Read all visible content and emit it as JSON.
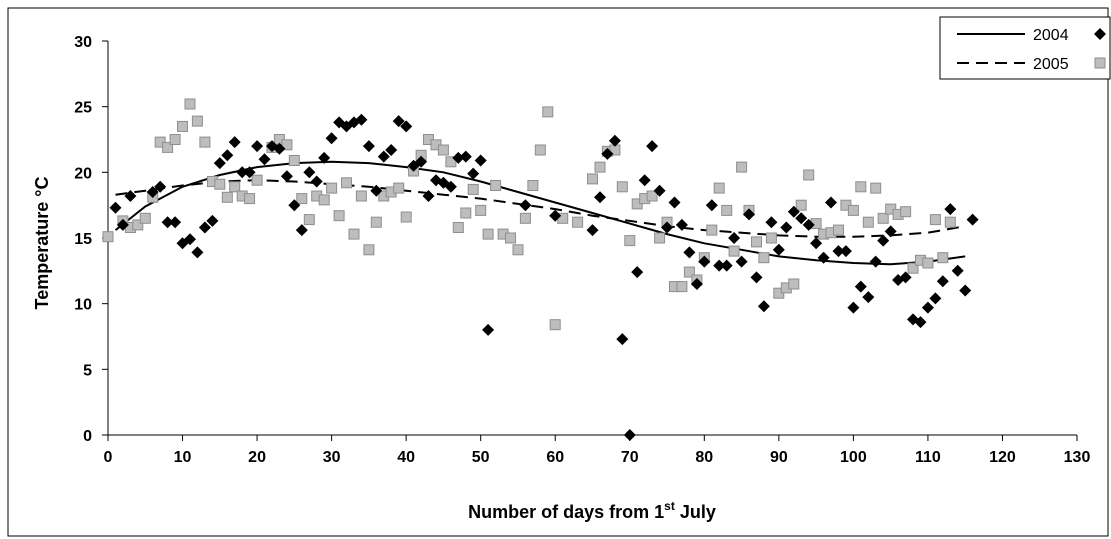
{
  "chart_data": {
    "type": "scatter",
    "xlabel": "Number of days from 1st July",
    "xlabel_parts": {
      "before": "Number of days from 1",
      "sup": "st",
      "after": " July"
    },
    "ylabel": "Temperature °C",
    "xlim": [
      0,
      130
    ],
    "ylim": [
      0,
      30
    ],
    "x_ticks": [
      0,
      10,
      20,
      30,
      40,
      50,
      60,
      70,
      80,
      90,
      100,
      110,
      120,
      130
    ],
    "y_ticks": [
      0,
      5,
      10,
      15,
      20,
      25,
      30
    ],
    "grid": false,
    "legend_position": "top-right",
    "series": [
      {
        "name": "2004",
        "marker": "diamond",
        "color": "#000000",
        "line_style": "solid",
        "points": [
          [
            1,
            17.3
          ],
          [
            2,
            16
          ],
          [
            3,
            18.2
          ],
          [
            6,
            18.5
          ],
          [
            7,
            18.9
          ],
          [
            8,
            16.2
          ],
          [
            9,
            16.2
          ],
          [
            10,
            14.6
          ],
          [
            11,
            14.9
          ],
          [
            12,
            13.9
          ],
          [
            13,
            15.8
          ],
          [
            14,
            16.3
          ],
          [
            15,
            20.7
          ],
          [
            16,
            21.3
          ],
          [
            17,
            22.3
          ],
          [
            18,
            20
          ],
          [
            19,
            20
          ],
          [
            20,
            22
          ],
          [
            21,
            21
          ],
          [
            22,
            22
          ],
          [
            23,
            21.8
          ],
          [
            24,
            19.7
          ],
          [
            25,
            17.5
          ],
          [
            26,
            15.6
          ],
          [
            27,
            20
          ],
          [
            28,
            19.3
          ],
          [
            29,
            21.1
          ],
          [
            30,
            22.6
          ],
          [
            31,
            23.8
          ],
          [
            32,
            23.5
          ],
          [
            33,
            23.8
          ],
          [
            34,
            24
          ],
          [
            35,
            22
          ],
          [
            36,
            18.6
          ],
          [
            37,
            21.2
          ],
          [
            38,
            21.7
          ],
          [
            39,
            23.9
          ],
          [
            40,
            23.5
          ],
          [
            41,
            20.5
          ],
          [
            42,
            20.8
          ],
          [
            43,
            18.2
          ],
          [
            44,
            19.4
          ],
          [
            45,
            19.2
          ],
          [
            46,
            18.9
          ],
          [
            47,
            21.1
          ],
          [
            48,
            21.2
          ],
          [
            49,
            19.9
          ],
          [
            50,
            20.9
          ],
          [
            51,
            8
          ],
          [
            56,
            17.5
          ],
          [
            60,
            16.7
          ],
          [
            65,
            15.6
          ],
          [
            66,
            18.1
          ],
          [
            67,
            21.4
          ],
          [
            68,
            22.4
          ],
          [
            69,
            7.3
          ],
          [
            70,
            0
          ],
          [
            71,
            12.4
          ],
          [
            72,
            19.4
          ],
          [
            73,
            22
          ],
          [
            74,
            18.6
          ],
          [
            75,
            15.8
          ],
          [
            76,
            17.7
          ],
          [
            77,
            16
          ],
          [
            78,
            13.9
          ],
          [
            79,
            11.5
          ],
          [
            80,
            13.2
          ],
          [
            81,
            17.5
          ],
          [
            82,
            12.9
          ],
          [
            83,
            12.9
          ],
          [
            84,
            15
          ],
          [
            85,
            13.2
          ],
          [
            86,
            16.8
          ],
          [
            87,
            12
          ],
          [
            88,
            9.8
          ],
          [
            89,
            16.2
          ],
          [
            90,
            14.1
          ],
          [
            91,
            15.8
          ],
          [
            92,
            17
          ],
          [
            93,
            16.5
          ],
          [
            94,
            16
          ],
          [
            95,
            14.6
          ],
          [
            96,
            13.5
          ],
          [
            97,
            17.7
          ],
          [
            98,
            14
          ],
          [
            99,
            14
          ],
          [
            100,
            9.7
          ],
          [
            101,
            11.3
          ],
          [
            102,
            10.5
          ],
          [
            103,
            13.2
          ],
          [
            104,
            14.8
          ],
          [
            105,
            15.5
          ],
          [
            106,
            11.8
          ],
          [
            107,
            12
          ],
          [
            108,
            8.8
          ],
          [
            109,
            8.6
          ],
          [
            110,
            9.7
          ],
          [
            111,
            10.4
          ],
          [
            112,
            11.7
          ],
          [
            113,
            17.2
          ],
          [
            114,
            12.5
          ],
          [
            115,
            11
          ],
          [
            116,
            16.4
          ]
        ]
      },
      {
        "name": "2005",
        "marker": "square",
        "color": "#bdbdbd",
        "line_style": "dashed",
        "points": [
          [
            0,
            15.1
          ],
          [
            2,
            16.3
          ],
          [
            3,
            15.8
          ],
          [
            4,
            16
          ],
          [
            5,
            16.5
          ],
          [
            6,
            18.1
          ],
          [
            7,
            22.3
          ],
          [
            8,
            21.9
          ],
          [
            9,
            22.5
          ],
          [
            10,
            23.5
          ],
          [
            11,
            25.2
          ],
          [
            12,
            23.9
          ],
          [
            13,
            22.3
          ],
          [
            14,
            19.3
          ],
          [
            15,
            19.1
          ],
          [
            16,
            18.1
          ],
          [
            17,
            18.9
          ],
          [
            18,
            18.2
          ],
          [
            19,
            18
          ],
          [
            20,
            19.4
          ],
          [
            22,
            21.9
          ],
          [
            23,
            22.5
          ],
          [
            24,
            22.1
          ],
          [
            25,
            20.9
          ],
          [
            26,
            18
          ],
          [
            27,
            16.4
          ],
          [
            28,
            18.2
          ],
          [
            29,
            17.9
          ],
          [
            30,
            18.8
          ],
          [
            31,
            16.7
          ],
          [
            32,
            19.2
          ],
          [
            33,
            15.3
          ],
          [
            34,
            18.2
          ],
          [
            35,
            14.1
          ],
          [
            36,
            16.2
          ],
          [
            37,
            18.2
          ],
          [
            38,
            18.5
          ],
          [
            39,
            18.8
          ],
          [
            40,
            16.6
          ],
          [
            41,
            20.1
          ],
          [
            42,
            21.3
          ],
          [
            43,
            22.5
          ],
          [
            44,
            22.1
          ],
          [
            45,
            21.7
          ],
          [
            46,
            20.8
          ],
          [
            47,
            15.8
          ],
          [
            48,
            16.9
          ],
          [
            49,
            18.7
          ],
          [
            50,
            17.1
          ],
          [
            51,
            15.3
          ],
          [
            52,
            19
          ],
          [
            53,
            15.3
          ],
          [
            54,
            15
          ],
          [
            55,
            14.1
          ],
          [
            56,
            16.5
          ],
          [
            57,
            19
          ],
          [
            58,
            21.7
          ],
          [
            59,
            24.6
          ],
          [
            60,
            8.4
          ],
          [
            61,
            16.5
          ],
          [
            63,
            16.2
          ],
          [
            65,
            19.5
          ],
          [
            66,
            20.4
          ],
          [
            67,
            21.6
          ],
          [
            68,
            21.7
          ],
          [
            69,
            18.9
          ],
          [
            70,
            14.8
          ],
          [
            71,
            17.6
          ],
          [
            72,
            18
          ],
          [
            73,
            18.2
          ],
          [
            74,
            15
          ],
          [
            75,
            16.2
          ],
          [
            76,
            11.3
          ],
          [
            77,
            11.3
          ],
          [
            78,
            12.4
          ],
          [
            79,
            11.8
          ],
          [
            80,
            13.5
          ],
          [
            81,
            15.6
          ],
          [
            82,
            18.8
          ],
          [
            83,
            17.1
          ],
          [
            84,
            14
          ],
          [
            85,
            20.4
          ],
          [
            86,
            17.1
          ],
          [
            87,
            14.7
          ],
          [
            88,
            13.5
          ],
          [
            89,
            15
          ],
          [
            90,
            10.8
          ],
          [
            91,
            11.2
          ],
          [
            92,
            11.5
          ],
          [
            93,
            17.5
          ],
          [
            94,
            19.8
          ],
          [
            95,
            16.1
          ],
          [
            96,
            15.3
          ],
          [
            97,
            15.4
          ],
          [
            98,
            15.6
          ],
          [
            99,
            17.5
          ],
          [
            100,
            17.1
          ],
          [
            101,
            18.9
          ],
          [
            102,
            16.2
          ],
          [
            103,
            18.8
          ],
          [
            104,
            16.5
          ],
          [
            105,
            17.2
          ],
          [
            106,
            16.8
          ],
          [
            107,
            17
          ],
          [
            108,
            12.7
          ],
          [
            109,
            13.3
          ],
          [
            110,
            13.1
          ],
          [
            111,
            16.4
          ],
          [
            112,
            13.5
          ],
          [
            113,
            16.2
          ]
        ]
      }
    ],
    "trendlines": [
      {
        "series": "2004",
        "style": "solid",
        "points": [
          [
            1,
            15.6
          ],
          [
            5,
            17.4
          ],
          [
            10,
            18.9
          ],
          [
            15,
            19.8
          ],
          [
            20,
            20.4
          ],
          [
            25,
            20.7
          ],
          [
            30,
            20.8
          ],
          [
            35,
            20.7
          ],
          [
            40,
            20.4
          ],
          [
            45,
            20
          ],
          [
            50,
            19.3
          ],
          [
            55,
            18.5
          ],
          [
            60,
            17.7
          ],
          [
            65,
            16.9
          ],
          [
            70,
            16.1
          ],
          [
            75,
            15.3
          ],
          [
            80,
            14.6
          ],
          [
            85,
            14.1
          ],
          [
            90,
            13.6
          ],
          [
            95,
            13.3
          ],
          [
            100,
            13.1
          ],
          [
            105,
            13
          ],
          [
            110,
            13.2
          ],
          [
            115,
            13.6
          ]
        ]
      },
      {
        "series": "2005",
        "style": "dashed",
        "points": [
          [
            1,
            18.3
          ],
          [
            5,
            18.6
          ],
          [
            10,
            19
          ],
          [
            15,
            19.3
          ],
          [
            20,
            19.4
          ],
          [
            25,
            19.3
          ],
          [
            30,
            19.1
          ],
          [
            35,
            18.9
          ],
          [
            40,
            18.6
          ],
          [
            45,
            18.3
          ],
          [
            50,
            18
          ],
          [
            55,
            17.6
          ],
          [
            60,
            17.2
          ],
          [
            65,
            16.7
          ],
          [
            70,
            16.3
          ],
          [
            75,
            15.9
          ],
          [
            80,
            15.6
          ],
          [
            85,
            15.4
          ],
          [
            90,
            15.2
          ],
          [
            95,
            15.1
          ],
          [
            100,
            15.1
          ],
          [
            105,
            15.2
          ],
          [
            110,
            15.4
          ],
          [
            115,
            15.9
          ]
        ]
      }
    ]
  }
}
